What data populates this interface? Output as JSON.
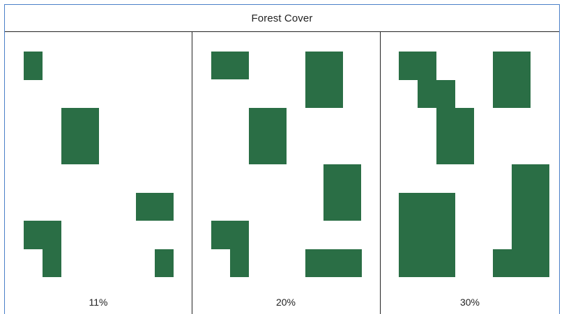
{
  "title": "Forest Cover",
  "colors": {
    "forest": "#2a6e45",
    "frame": "#4a80c8",
    "line": "#222222"
  },
  "panels": [
    {
      "label": "11%"
    },
    {
      "label": "20%"
    },
    {
      "label": "30%"
    }
  ]
}
